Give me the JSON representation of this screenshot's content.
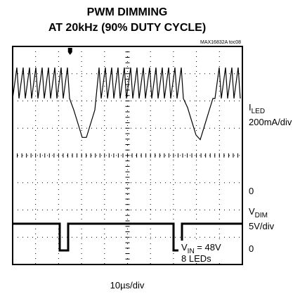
{
  "header": {
    "title_line1": "PWM DIMMING",
    "title_line2": "AT 20kHz (90% DUTY CYCLE)",
    "figure_id": "MAX16832A toc08"
  },
  "channels": [
    {
      "symbol": "I",
      "subscript": "LED",
      "scale": "200mA/div",
      "zero": "0"
    },
    {
      "symbol": "V",
      "subscript": "DIM",
      "scale": "5V/div",
      "zero": "0"
    }
  ],
  "conditions": {
    "symbol": "V",
    "subscript": "IN",
    "value": " = 48V",
    "note": "8 LEDs"
  },
  "timebase": "10µs/div"
}
